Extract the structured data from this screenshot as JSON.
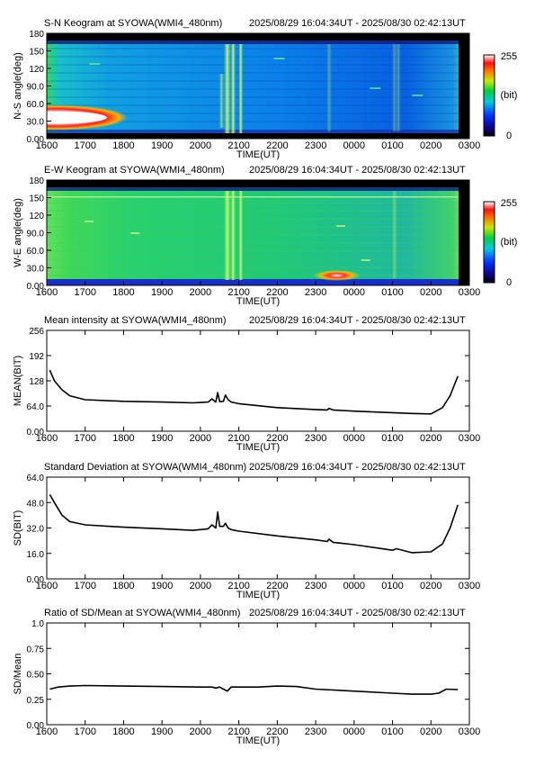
{
  "keogram_colorbar": {
    "min_label": "0",
    "max_label": "255",
    "unit_label": "(bit)"
  },
  "chart_data": [
    {
      "type": "heatmap",
      "title": "S-N Keogram at SYOWA(WMI4_480nm)",
      "time_range": "2025/08/29 16:04:34UT - 2025/08/30 02:42:13UT",
      "xlabel": "TIME(UT)",
      "ylabel": "N-S angle(deg)",
      "x_tick_labels": [
        "1600",
        "1700",
        "1800",
        "1900",
        "2000",
        "2100",
        "2200",
        "2300",
        "0000",
        "0100",
        "0200",
        "0300"
      ],
      "y_tick_labels": [
        "0.00",
        "30.0",
        "60.0",
        "90.0",
        "120",
        "150",
        "180"
      ],
      "ylim": [
        0,
        180
      ],
      "colorbar": {
        "min": 0,
        "max": 255,
        "unit": "(bit)"
      },
      "features": [
        {
          "time": "1600-1800",
          "angle": "15-35",
          "intensity": "saturated (white)"
        },
        {
          "time": "2040-2110",
          "angle": "0-180",
          "intensity": "bright vertical bands"
        },
        {
          "time": "2330",
          "angle": "10-180",
          "intensity": "faint vertical band"
        },
        {
          "time": "0100",
          "angle": "0-180",
          "intensity": "faint vertical band"
        }
      ]
    },
    {
      "type": "heatmap",
      "title": "E-W Keogram at SYOWA(WMI4_480nm)",
      "time_range": "2025/08/29 16:04:34UT - 2025/08/30 02:42:13UT",
      "xlabel": "TIME(UT)",
      "ylabel": "W-E angle(deg)",
      "x_tick_labels": [
        "1600",
        "1700",
        "1800",
        "1900",
        "2000",
        "2100",
        "2200",
        "2300",
        "0000",
        "0100",
        "0200",
        "0300"
      ],
      "y_tick_labels": [
        "0.00",
        "30.0",
        "60.0",
        "90.0",
        "120",
        "150",
        "180"
      ],
      "ylim": [
        0,
        180
      ],
      "colorbar": {
        "min": 0,
        "max": 255,
        "unit": "(bit)"
      },
      "features": [
        {
          "time": "2040-2110",
          "angle": "0-180",
          "intensity": "bright vertical bands"
        },
        {
          "time": "2300-2345",
          "angle": "5-20",
          "intensity": "saturated (white/red spot)"
        },
        {
          "time": "0100",
          "angle": "0-180",
          "intensity": "faint vertical band"
        }
      ]
    },
    {
      "type": "line",
      "title": "Mean intensity at SYOWA(WMI4_480nm)",
      "time_range": "2025/08/29 16:04:34UT - 2025/08/30 02:42:13UT",
      "xlabel": "TIME(UT)",
      "ylabel": "MEAN(BIT)",
      "x_tick_labels": [
        "1600",
        "1700",
        "1800",
        "1900",
        "2000",
        "2100",
        "2200",
        "2300",
        "0000",
        "0100",
        "0200",
        "0300"
      ],
      "y_tick_labels": [
        "0.00",
        "64.0",
        "128",
        "192",
        "256"
      ],
      "ylim": [
        0,
        256
      ],
      "x": [
        16.08,
        16.2,
        16.4,
        16.6,
        17.0,
        18.0,
        19.0,
        19.8,
        20.0,
        20.2,
        20.3,
        20.4,
        20.45,
        20.5,
        20.6,
        20.65,
        20.72,
        20.8,
        21.0,
        22.0,
        23.0,
        23.3,
        23.35,
        23.45,
        0.0,
        1.0,
        1.5,
        2.0,
        2.3,
        2.5,
        2.7
      ],
      "values": [
        155,
        128,
        105,
        90,
        80,
        76,
        74,
        72,
        73,
        74,
        82,
        74,
        98,
        75,
        76,
        92,
        80,
        74,
        70,
        60,
        55,
        54,
        58,
        54,
        51,
        47,
        45,
        44,
        60,
        90,
        140
      ]
    },
    {
      "type": "line",
      "title": "Standard Deviation at SYOWA(WMI4_480nm)",
      "time_range": "2025/08/29 16:04:34UT - 2025/08/30 02:42:13UT",
      "xlabel": "TIME(UT)",
      "ylabel": "SD(BIT)",
      "x_tick_labels": [
        "1600",
        "1700",
        "1800",
        "1900",
        "2000",
        "2100",
        "2200",
        "2300",
        "0000",
        "0100",
        "0200",
        "0300"
      ],
      "y_tick_labels": [
        "0.00",
        "16.0",
        "32.0",
        "48.0",
        "64.0"
      ],
      "ylim": [
        0,
        64
      ],
      "x": [
        16.08,
        16.2,
        16.4,
        16.6,
        17.0,
        18.0,
        19.0,
        19.8,
        20.0,
        20.2,
        20.3,
        20.4,
        20.45,
        20.5,
        20.6,
        20.65,
        20.72,
        20.8,
        21.0,
        22.0,
        23.0,
        23.3,
        23.35,
        23.45,
        0.0,
        1.0,
        1.1,
        1.5,
        2.0,
        2.3,
        2.5,
        2.7
      ],
      "values": [
        53,
        48,
        40,
        36,
        34,
        32.5,
        31.5,
        30.5,
        31,
        31.5,
        34,
        32,
        42,
        33,
        33,
        35,
        32,
        31,
        30,
        27,
        24.5,
        23.5,
        25,
        23,
        21.5,
        18,
        19,
        16.5,
        17,
        22,
        32,
        46.5
      ]
    },
    {
      "type": "line",
      "title": "Ratio of SD/Mean at SYOWA(WMI4_480nm)",
      "time_range": "2025/08/29 16:04:34UT - 2025/08/30 02:42:13UT",
      "xlabel": "TIME(UT)",
      "ylabel": "SD/Mean",
      "x_tick_labels": [
        "1600",
        "1700",
        "1800",
        "1900",
        "2000",
        "2100",
        "2200",
        "2300",
        "0000",
        "0100",
        "0200",
        "0300"
      ],
      "y_tick_labels": [
        "0.00",
        "0.25",
        "0.50",
        "0.75",
        "1.0"
      ],
      "ylim": [
        0,
        1
      ],
      "x": [
        16.08,
        16.3,
        16.6,
        17.0,
        18.0,
        19.0,
        20.0,
        20.3,
        20.4,
        20.5,
        20.6,
        20.7,
        20.75,
        20.8,
        21.0,
        21.5,
        22.0,
        22.5,
        23.0,
        0.0,
        1.0,
        1.5,
        2.0,
        2.2,
        2.4,
        2.7
      ],
      "values": [
        0.35,
        0.37,
        0.38,
        0.385,
        0.38,
        0.375,
        0.37,
        0.37,
        0.36,
        0.37,
        0.35,
        0.33,
        0.35,
        0.37,
        0.37,
        0.37,
        0.38,
        0.375,
        0.35,
        0.33,
        0.31,
        0.3,
        0.3,
        0.31,
        0.35,
        0.345
      ]
    }
  ]
}
